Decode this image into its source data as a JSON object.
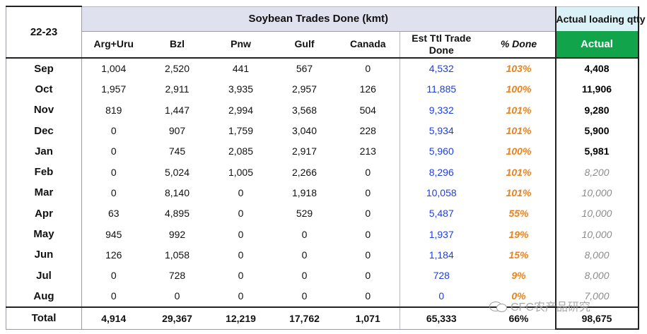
{
  "header": {
    "year": "22-23",
    "title": "Soybean Trades Done (kmt)",
    "actual_top": "Actual loading qtty",
    "actual_label": "Actual",
    "columns": [
      "Arg+Uru",
      "Bzl",
      "Pnw",
      "Gulf",
      "Canada",
      "Est Ttl Trade Done",
      "% Done"
    ]
  },
  "rows": [
    {
      "month": "Sep",
      "arg": "1,004",
      "bzl": "2,520",
      "pnw": "441",
      "gulf": "567",
      "canada": "0",
      "est": "4,532",
      "pct": "103%",
      "actual": "4,408"
    },
    {
      "month": "Oct",
      "arg": "1,957",
      "bzl": "2,911",
      "pnw": "3,935",
      "gulf": "2,957",
      "canada": "126",
      "est": "11,885",
      "pct": "100%",
      "actual": "11,906"
    },
    {
      "month": "Nov",
      "arg": "819",
      "bzl": "1,447",
      "pnw": "2,994",
      "gulf": "3,568",
      "canada": "504",
      "est": "9,332",
      "pct": "101%",
      "actual": "9,280"
    },
    {
      "month": "Dec",
      "arg": "0",
      "bzl": "907",
      "pnw": "1,759",
      "gulf": "3,040",
      "canada": "228",
      "est": "5,934",
      "pct": "101%",
      "actual": "5,900"
    },
    {
      "month": "Jan",
      "arg": "0",
      "bzl": "745",
      "pnw": "2,085",
      "gulf": "2,917",
      "canada": "213",
      "est": "5,960",
      "pct": "100%",
      "actual": "5,981"
    },
    {
      "month": "Feb",
      "arg": "0",
      "bzl": "5,024",
      "pnw": "1,005",
      "gulf": "2,266",
      "canada": "0",
      "est": "8,296",
      "pct": "101%",
      "actual": "8,200"
    },
    {
      "month": "Mar",
      "arg": "0",
      "bzl": "8,140",
      "pnw": "0",
      "gulf": "1,918",
      "canada": "0",
      "est": "10,058",
      "pct": "101%",
      "actual": "10,000"
    },
    {
      "month": "Apr",
      "arg": "63",
      "bzl": "4,895",
      "pnw": "0",
      "gulf": "529",
      "canada": "0",
      "est": "5,487",
      "pct": "55%",
      "actual": "10,000"
    },
    {
      "month": "May",
      "arg": "945",
      "bzl": "992",
      "pnw": "0",
      "gulf": "0",
      "canada": "0",
      "est": "1,937",
      "pct": "19%",
      "actual": "10,000"
    },
    {
      "month": "Jun",
      "arg": "126",
      "bzl": "1,058",
      "pnw": "0",
      "gulf": "0",
      "canada": "0",
      "est": "1,184",
      "pct": "15%",
      "actual": "8,000"
    },
    {
      "month": "Jul",
      "arg": "0",
      "bzl": "728",
      "pnw": "0",
      "gulf": "0",
      "canada": "0",
      "est": "728",
      "pct": "9%",
      "actual": "8,000"
    },
    {
      "month": "Aug",
      "arg": "0",
      "bzl": "0",
      "pnw": "0",
      "gulf": "0",
      "canada": "0",
      "est": "0",
      "pct": "0%",
      "actual": "7,000"
    }
  ],
  "total": {
    "month": "Total",
    "arg": "4,914",
    "bzl": "29,367",
    "pnw": "12,219",
    "gulf": "17,762",
    "canada": "1,071",
    "est": "65,333",
    "pct": "66%",
    "actual": "98,675"
  },
  "watermark": {
    "text": "CFC农产品研究",
    "icon": "wechat-icon"
  },
  "colors": {
    "header_bg": "#dfe1ee",
    "actual_header_bg": "#d9f1f7",
    "actual_green": "#12a44a",
    "est_blue": "#1f3ee0",
    "pct_orange": "#e8821c",
    "projected_gray": "#8c8c8c"
  }
}
